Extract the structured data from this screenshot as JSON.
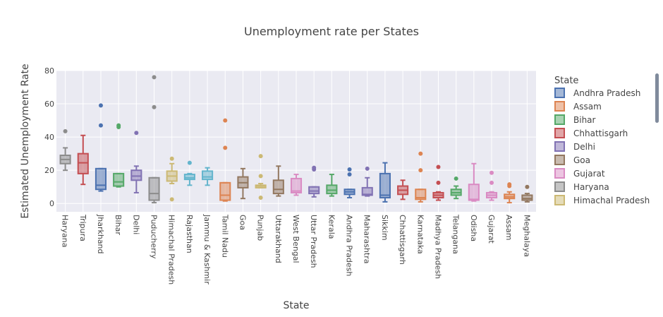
{
  "chart_data": {
    "type": "box",
    "title": "Unemployment rate per States",
    "xlabel": "State",
    "ylabel": "Estimated Unemployment Rate",
    "ylim": [
      -5,
      80
    ],
    "yticks": [
      0,
      20,
      40,
      60,
      80
    ],
    "grid": true,
    "legend": {
      "title": "State",
      "position": "right",
      "entries": [
        "Andhra Pradesh",
        "Assam",
        "Bihar",
        "Chhattisgarh",
        "Delhi",
        "Goa",
        "Gujarat",
        "Haryana",
        "Himachal Pradesh"
      ]
    },
    "colors": [
      "#4c72b0",
      "#dd8452",
      "#55a868",
      "#c44e52",
      "#8172b3",
      "#937860",
      "#da8bc3",
      "#8c8c8c",
      "#ccb974",
      "#64b5cd"
    ],
    "boxes": [
      {
        "name": "Haryana",
        "color": "#8c8c8c",
        "min": 20,
        "q1": 24,
        "median": 26.5,
        "q3": 29,
        "max": 33.5,
        "outliers": [
          43.5
        ]
      },
      {
        "name": "Tripura",
        "color": "#c44e52",
        "min": 11.5,
        "q1": 18,
        "median": 24.5,
        "q3": 30,
        "max": 41,
        "outliers": []
      },
      {
        "name": "Jharkhand",
        "color": "#4c72b0",
        "min": 7.5,
        "q1": 8.5,
        "median": 11,
        "q3": 21,
        "max": 21,
        "outliers": [
          47,
          59
        ]
      },
      {
        "name": "Bihar",
        "color": "#55a868",
        "min": 10,
        "q1": 10.5,
        "median": 13,
        "q3": 18,
        "max": 18,
        "outliers": [
          46,
          47
        ]
      },
      {
        "name": "Delhi",
        "color": "#8172b3",
        "min": 6.5,
        "q1": 14,
        "median": 16.5,
        "q3": 20,
        "max": 22.5,
        "outliers": [
          42.5
        ]
      },
      {
        "name": "Puducherry",
        "color": "#8c8c8c",
        "min": 0.5,
        "q1": 2,
        "median": 6,
        "q3": 15.5,
        "max": 15.5,
        "outliers": [
          58,
          76
        ]
      },
      {
        "name": "Himachal Pradesh",
        "color": "#ccb974",
        "min": 12,
        "q1": 13.5,
        "median": 16.5,
        "q3": 19.5,
        "max": 24,
        "outliers": [
          2.5,
          27
        ]
      },
      {
        "name": "Rajasthan",
        "color": "#64b5cd",
        "min": 11,
        "q1": 14.5,
        "median": 15.5,
        "q3": 17.5,
        "max": 18,
        "outliers": [
          24.5
        ]
      },
      {
        "name": "Jammu & Kashmir",
        "color": "#64b5cd",
        "min": 11,
        "q1": 14.5,
        "median": 16,
        "q3": 19.5,
        "max": 21.5,
        "outliers": []
      },
      {
        "name": "Tamil Nadu",
        "color": "#dd8452",
        "min": 1.5,
        "q1": 2,
        "median": 5,
        "q3": 12.5,
        "max": 12.5,
        "outliers": [
          33.5,
          50
        ]
      },
      {
        "name": "Goa",
        "color": "#937860",
        "min": 3,
        "q1": 9.5,
        "median": 12.5,
        "q3": 16,
        "max": 21,
        "outliers": []
      },
      {
        "name": "Punjab",
        "color": "#ccb974",
        "min": 9.5,
        "q1": 9.5,
        "median": 10.5,
        "q3": 11,
        "max": 12,
        "outliers": [
          3.5,
          16.5,
          28.5
        ]
      },
      {
        "name": "Uttarakhand",
        "color": "#937860",
        "min": 4.5,
        "q1": 6,
        "median": 8.5,
        "q3": 14,
        "max": 22.5,
        "outliers": []
      },
      {
        "name": "West Bengal",
        "color": "#da8bc3",
        "min": 5,
        "q1": 6.5,
        "median": 7.5,
        "q3": 15,
        "max": 17.5,
        "outliers": []
      },
      {
        "name": "Uttar Pradesh",
        "color": "#8172b3",
        "min": 4,
        "q1": 6,
        "median": 7.5,
        "q3": 10,
        "max": 10,
        "outliers": [
          20.5,
          21.5
        ]
      },
      {
        "name": "Kerala",
        "color": "#55a868",
        "min": 4.5,
        "q1": 6,
        "median": 8,
        "q3": 11,
        "max": 17.5,
        "outliers": []
      },
      {
        "name": "Andhra Pradesh",
        "color": "#4c72b0",
        "min": 3.5,
        "q1": 5.5,
        "median": 7,
        "q3": 8.5,
        "max": 8.5,
        "outliers": [
          17.5,
          20.5
        ]
      },
      {
        "name": "Maharashtra",
        "color": "#8172b3",
        "min": 4.5,
        "q1": 5,
        "median": 5.5,
        "q3": 9.5,
        "max": 15.5,
        "outliers": [
          21
        ]
      },
      {
        "name": "Sikkim",
        "color": "#4c72b0",
        "min": 1,
        "q1": 3.5,
        "median": 5,
        "q3": 18,
        "max": 24.5,
        "outliers": []
      },
      {
        "name": "Chhattisgarh",
        "color": "#c44e52",
        "min": 2.5,
        "q1": 5.5,
        "median": 8,
        "q3": 10.5,
        "max": 14,
        "outliers": []
      },
      {
        "name": "Karnataka",
        "color": "#dd8452",
        "min": 1,
        "q1": 2.5,
        "median": 3.5,
        "q3": 8.5,
        "max": 8.5,
        "outliers": [
          20,
          30
        ]
      },
      {
        "name": "Madhya Pradesh",
        "color": "#c44e52",
        "min": 2,
        "q1": 3.5,
        "median": 5,
        "q3": 6.5,
        "max": 7,
        "outliers": [
          12.5,
          22
        ]
      },
      {
        "name": "Telangana",
        "color": "#55a868",
        "min": 3,
        "q1": 5,
        "median": 6.5,
        "q3": 8.5,
        "max": 10.5,
        "outliers": [
          15
        ]
      },
      {
        "name": "Odisha",
        "color": "#da8bc3",
        "min": 1.5,
        "q1": 2,
        "median": 2.5,
        "q3": 11.5,
        "max": 24,
        "outliers": []
      },
      {
        "name": "Gujarat",
        "color": "#da8bc3",
        "min": 2,
        "q1": 3.5,
        "median": 5,
        "q3": 6.5,
        "max": 7,
        "outliers": [
          12.5,
          18.5
        ]
      },
      {
        "name": "Assam",
        "color": "#dd8452",
        "min": 0.5,
        "q1": 3,
        "median": 4,
        "q3": 5.5,
        "max": 7,
        "outliers": [
          10.5,
          11.5
        ]
      },
      {
        "name": "Meghalaya",
        "color": "#937860",
        "min": 1,
        "q1": 2,
        "median": 3,
        "q3": 5,
        "max": 6,
        "outliers": [
          10
        ]
      }
    ]
  }
}
